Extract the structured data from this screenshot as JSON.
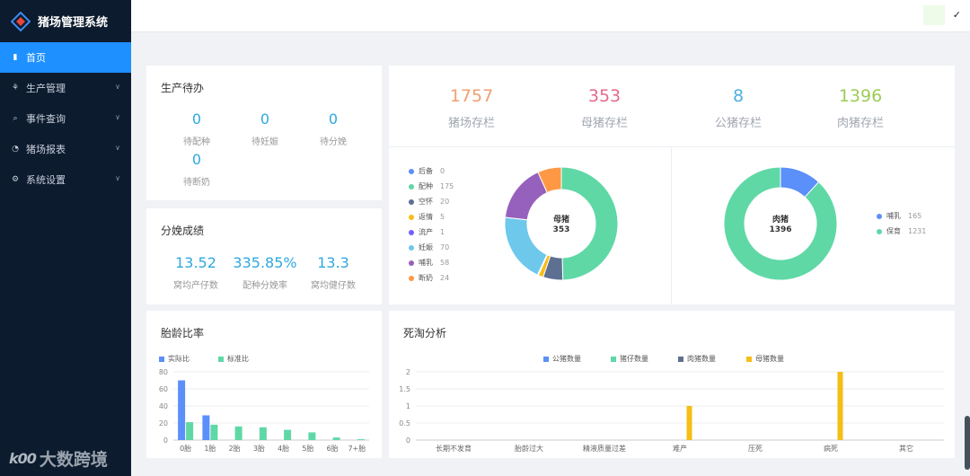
{
  "app": {
    "title": "猪场管理系统"
  },
  "sidebar": {
    "items": [
      {
        "label": "首页",
        "icon": "bar-chart-icon",
        "active": true
      },
      {
        "label": "生产管理",
        "icon": "pig-icon",
        "expandable": true
      },
      {
        "label": "事件查询",
        "icon": "search-icon",
        "expandable": true
      },
      {
        "label": "猪场报表",
        "icon": "clock-icon",
        "expandable": true
      },
      {
        "label": "系统设置",
        "icon": "gear-icon",
        "expandable": true
      }
    ]
  },
  "watermark": {
    "text": "大数跨境",
    "mark": "k00"
  },
  "topbar": {
    "check": "✓"
  },
  "todo": {
    "title": "生产待办",
    "items": [
      {
        "value": "0",
        "label": "待配种"
      },
      {
        "value": "0",
        "label": "待妊娠"
      },
      {
        "value": "0",
        "label": "待分娩"
      },
      {
        "value": "0",
        "label": "待断奶"
      }
    ]
  },
  "farrowing": {
    "title": "分娩成绩",
    "items": [
      {
        "value": "13.52",
        "label": "窝均产仔数"
      },
      {
        "value": "335.85%",
        "label": "配种分娩率"
      },
      {
        "value": "13.3",
        "label": "窝均健仔数"
      }
    ]
  },
  "inventory": {
    "items": [
      {
        "value": "1757",
        "label": "猪场存栏",
        "color": "#f0a070"
      },
      {
        "value": "353",
        "label": "母猪存栏",
        "color": "#e46a8c"
      },
      {
        "value": "8",
        "label": "公猪存栏",
        "color": "#4fb0e0"
      },
      {
        "value": "1396",
        "label": "肉猪存栏",
        "color": "#9ccc58"
      }
    ]
  },
  "sow_donut": {
    "center_label": "母猪",
    "center_value": "353",
    "segments": [
      {
        "name": "后备",
        "value": 0,
        "color": "#5b8ff9"
      },
      {
        "name": "配种",
        "value": 175,
        "color": "#5fd8a6"
      },
      {
        "name": "空怀",
        "value": 20,
        "color": "#5d7092"
      },
      {
        "name": "返情",
        "value": 5,
        "color": "#f6bd16"
      },
      {
        "name": "流产",
        "value": 1,
        "color": "#7262fd"
      },
      {
        "name": "妊娠",
        "value": 70,
        "color": "#6dc8ec"
      },
      {
        "name": "哺乳",
        "value": 58,
        "color": "#9661bc"
      },
      {
        "name": "断奶",
        "value": 24,
        "color": "#ff9845"
      }
    ]
  },
  "hog_donut": {
    "center_label": "肉猪",
    "center_value": "1396",
    "segments": [
      {
        "name": "哺乳",
        "value": 165,
        "color": "#5b8ff9"
      },
      {
        "name": "保育",
        "value": 1231,
        "color": "#5fd8a6"
      }
    ]
  },
  "parity": {
    "title": "胎龄比率",
    "chart_data": {
      "type": "bar",
      "categories": [
        "0胎",
        "1胎",
        "2胎",
        "3胎",
        "4胎",
        "5胎",
        "6胎",
        "7+胎"
      ],
      "series": [
        {
          "name": "实际比",
          "color": "#5b8ff9",
          "values": [
            70,
            29,
            0,
            0,
            0,
            0,
            0,
            0
          ]
        },
        {
          "name": "标准比",
          "color": "#5fd8a6",
          "values": [
            21,
            18,
            16,
            15,
            12,
            9,
            3,
            1
          ]
        }
      ],
      "ylim": [
        0,
        80
      ],
      "yticks": [
        0,
        20,
        40,
        60,
        80
      ]
    }
  },
  "death": {
    "title": "死淘分析",
    "chart_data": {
      "type": "bar",
      "categories": [
        "长期不发育",
        "胎龄过大",
        "精液质量过差",
        "难产",
        "压死",
        "病死",
        "其它"
      ],
      "series": [
        {
          "name": "公猪数量",
          "color": "#5b8ff9",
          "values": [
            0,
            0,
            0,
            0,
            0,
            0,
            0
          ]
        },
        {
          "name": "猪仔数量",
          "color": "#5fd8a6",
          "values": [
            0,
            0,
            0,
            0,
            0,
            0,
            0
          ]
        },
        {
          "name": "肉猪数量",
          "color": "#5d7092",
          "values": [
            0,
            0,
            0,
            0,
            0,
            0,
            0
          ]
        },
        {
          "name": "母猪数量",
          "color": "#f6bd16",
          "values": [
            0,
            0,
            0,
            1,
            0,
            2,
            0
          ]
        }
      ],
      "ylim": [
        0,
        2
      ],
      "yticks": [
        0,
        0.5,
        1,
        1.5,
        2
      ]
    }
  }
}
